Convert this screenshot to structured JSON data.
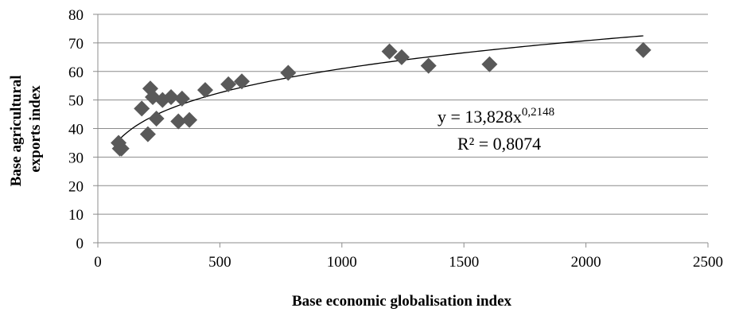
{
  "chart_data": {
    "type": "scatter",
    "xlabel": "Base economic globalisation index",
    "ylabel_lines": [
      "Base agricultural",
      "exports index"
    ],
    "xlim": [
      0,
      2500
    ],
    "ylim": [
      0,
      80
    ],
    "x_ticks": [
      0,
      500,
      1000,
      1500,
      2000,
      2500
    ],
    "y_ticks": [
      0,
      10,
      20,
      30,
      40,
      50,
      60,
      70,
      80
    ],
    "grid": {
      "horizontal": true,
      "vertical": false
    },
    "marker": {
      "shape": "diamond",
      "color": "#595959"
    },
    "points": [
      {
        "x": 85,
        "y": 35
      },
      {
        "x": 90,
        "y": 33
      },
      {
        "x": 97,
        "y": 33
      },
      {
        "x": 180,
        "y": 47
      },
      {
        "x": 205,
        "y": 38
      },
      {
        "x": 215,
        "y": 54
      },
      {
        "x": 225,
        "y": 51
      },
      {
        "x": 240,
        "y": 43.5
      },
      {
        "x": 265,
        "y": 50
      },
      {
        "x": 300,
        "y": 51
      },
      {
        "x": 330,
        "y": 42.5
      },
      {
        "x": 345,
        "y": 50.5
      },
      {
        "x": 375,
        "y": 43
      },
      {
        "x": 440,
        "y": 53.5
      },
      {
        "x": 535,
        "y": 55.5
      },
      {
        "x": 590,
        "y": 56.5
      },
      {
        "x": 780,
        "y": 59.5
      },
      {
        "x": 1195,
        "y": 67
      },
      {
        "x": 1245,
        "y": 65
      },
      {
        "x": 1355,
        "y": 62
      },
      {
        "x": 1605,
        "y": 62.5
      },
      {
        "x": 2235,
        "y": 67.5
      }
    ],
    "trendline": {
      "type": "power",
      "coefficient": 13.828,
      "exponent": 0.2148,
      "x_start": 85,
      "x_end": 2235,
      "color": "#000000"
    },
    "annotation": {
      "equation_base": "y = 13,828x",
      "equation_exponent": "0,2148",
      "r_squared": "R² = 0,8074"
    }
  }
}
